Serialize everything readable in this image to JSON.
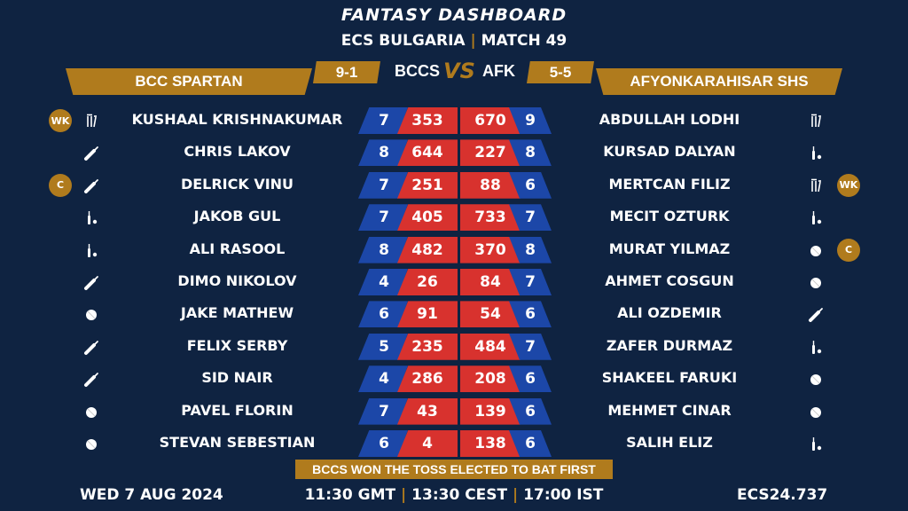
{
  "header": {
    "title": "FANTASY DASHBOARD",
    "league": "ECS BULGARIA",
    "match": "MATCH 49"
  },
  "teams": {
    "left": {
      "name": "BCC SPARTAN",
      "abbr": "BCCS",
      "record": "9-1"
    },
    "right": {
      "name": "AFYONKARAHISAR SHS",
      "abbr": "AFK",
      "record": "5-5"
    },
    "vs": "VS"
  },
  "left_players": [
    {
      "name": "KUSHAAL KRISHNAKUMAR",
      "rank": "7",
      "points": "353",
      "role": "stumps-icon",
      "badge": "WK"
    },
    {
      "name": "CHRIS LAKOV",
      "rank": "8",
      "points": "644",
      "role": "bat-icon"
    },
    {
      "name": "DELRICK VINU",
      "rank": "7",
      "points": "251",
      "role": "bat-icon",
      "badge": "C"
    },
    {
      "name": "JAKOB GUL",
      "rank": "7",
      "points": "405",
      "role": "bat-ball-icon"
    },
    {
      "name": "ALI RASOOL",
      "rank": "8",
      "points": "482",
      "role": "bat-ball-icon"
    },
    {
      "name": "DIMO NIKOLOV",
      "rank": "4",
      "points": "26",
      "role": "bat-icon"
    },
    {
      "name": "JAKE MATHEW",
      "rank": "6",
      "points": "91",
      "role": "ball-icon"
    },
    {
      "name": "FELIX SERBY",
      "rank": "5",
      "points": "235",
      "role": "bat-icon"
    },
    {
      "name": "SID NAIR",
      "rank": "4",
      "points": "286",
      "role": "bat-icon"
    },
    {
      "name": "PAVEL FLORIN",
      "rank": "7",
      "points": "43",
      "role": "ball-icon"
    },
    {
      "name": "STEVAN SEBESTIAN",
      "rank": "6",
      "points": "4",
      "role": "ball-icon"
    }
  ],
  "right_players": [
    {
      "name": "ABDULLAH LODHI",
      "rank": "9",
      "points": "670",
      "role": "stumps-icon"
    },
    {
      "name": "KURSAD DALYAN",
      "rank": "8",
      "points": "227",
      "role": "bat-ball-icon"
    },
    {
      "name": "MERTCAN FILIZ",
      "rank": "6",
      "points": "88",
      "role": "stumps-icon",
      "badge": "WK"
    },
    {
      "name": "MECIT OZTURK",
      "rank": "7",
      "points": "733",
      "role": "bat-ball-icon"
    },
    {
      "name": "MURAT YILMAZ",
      "rank": "8",
      "points": "370",
      "role": "ball-icon",
      "badge": "C"
    },
    {
      "name": "AHMET COSGUN",
      "rank": "7",
      "points": "84",
      "role": "ball-icon"
    },
    {
      "name": "ALI OZDEMIR",
      "rank": "6",
      "points": "54",
      "role": "bat-icon"
    },
    {
      "name": "ZAFER DURMAZ",
      "rank": "7",
      "points": "484",
      "role": "bat-ball-icon"
    },
    {
      "name": "SHAKEEL FARUKI",
      "rank": "6",
      "points": "208",
      "role": "ball-icon"
    },
    {
      "name": "MEHMET CINAR",
      "rank": "6",
      "points": "139",
      "role": "ball-icon"
    },
    {
      "name": "SALIH ELIZ",
      "rank": "6",
      "points": "138",
      "role": "bat-ball-icon"
    }
  ],
  "toss": "BCCS WON THE TOSS ELECTED TO BAT FIRST",
  "footer": {
    "date": "WED 7 AUG 2024",
    "time_gmt": "11:30 GMT",
    "time_cest": "13:30 CEST",
    "time_ist": "17:00 IST",
    "code": "ECS24.737"
  },
  "colors": {
    "background": "#0f2341",
    "gold": "#b07b1d",
    "blue": "#1c47a8",
    "red": "#d8322e"
  }
}
